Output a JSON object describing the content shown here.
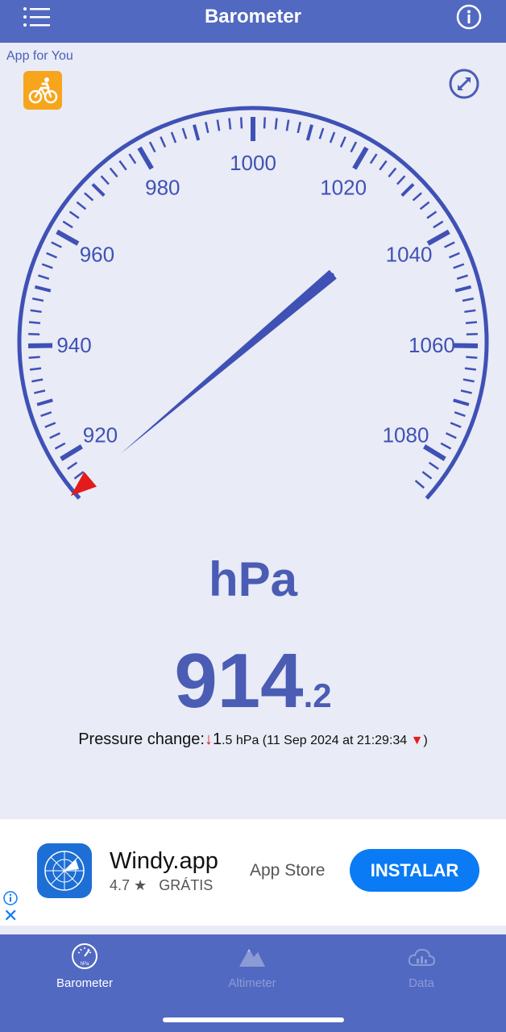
{
  "header": {
    "title": "Barometer",
    "menu_icon": "menu-icon",
    "info_icon": "info-icon"
  },
  "promo": {
    "label": "App for You",
    "icon": "cyclist-app-icon"
  },
  "gauge": {
    "tick_labels": [
      "920",
      "940",
      "960",
      "980",
      "1000",
      "1020",
      "1040",
      "1060",
      "1080"
    ],
    "min": 913,
    "max": 1087,
    "needle_value": 914.2,
    "marker_value": 914.2,
    "colors": {
      "primary": "#3f51b5",
      "marker": "#e31b1b"
    }
  },
  "reading": {
    "unit": "hPa",
    "integer": "914",
    "decimal": ".2"
  },
  "pressure_change": {
    "label": "Pressure change:",
    "arrow": "↓",
    "value_big": "1",
    "value_small": ".5 hPa (11 Sep 2024 at 21:29:34 ",
    "trend_marker": "▼",
    "close": ")"
  },
  "ad": {
    "app_name": "Windy.app",
    "rating": "4.7",
    "star": "★",
    "price": "GRÁTIS",
    "store": "App Store",
    "button": "INSTALAR",
    "close": "✕"
  },
  "tabs": [
    {
      "label": "Barometer",
      "icon": "barometer-icon",
      "active": true
    },
    {
      "label": "Altimeter",
      "icon": "mountain-icon",
      "active": false
    },
    {
      "label": "Data",
      "icon": "cloud-chart-icon",
      "active": false
    }
  ],
  "colors": {
    "accent": "#5269c2",
    "background": "#e9ebf6",
    "ad_button": "#0a7bf4"
  }
}
